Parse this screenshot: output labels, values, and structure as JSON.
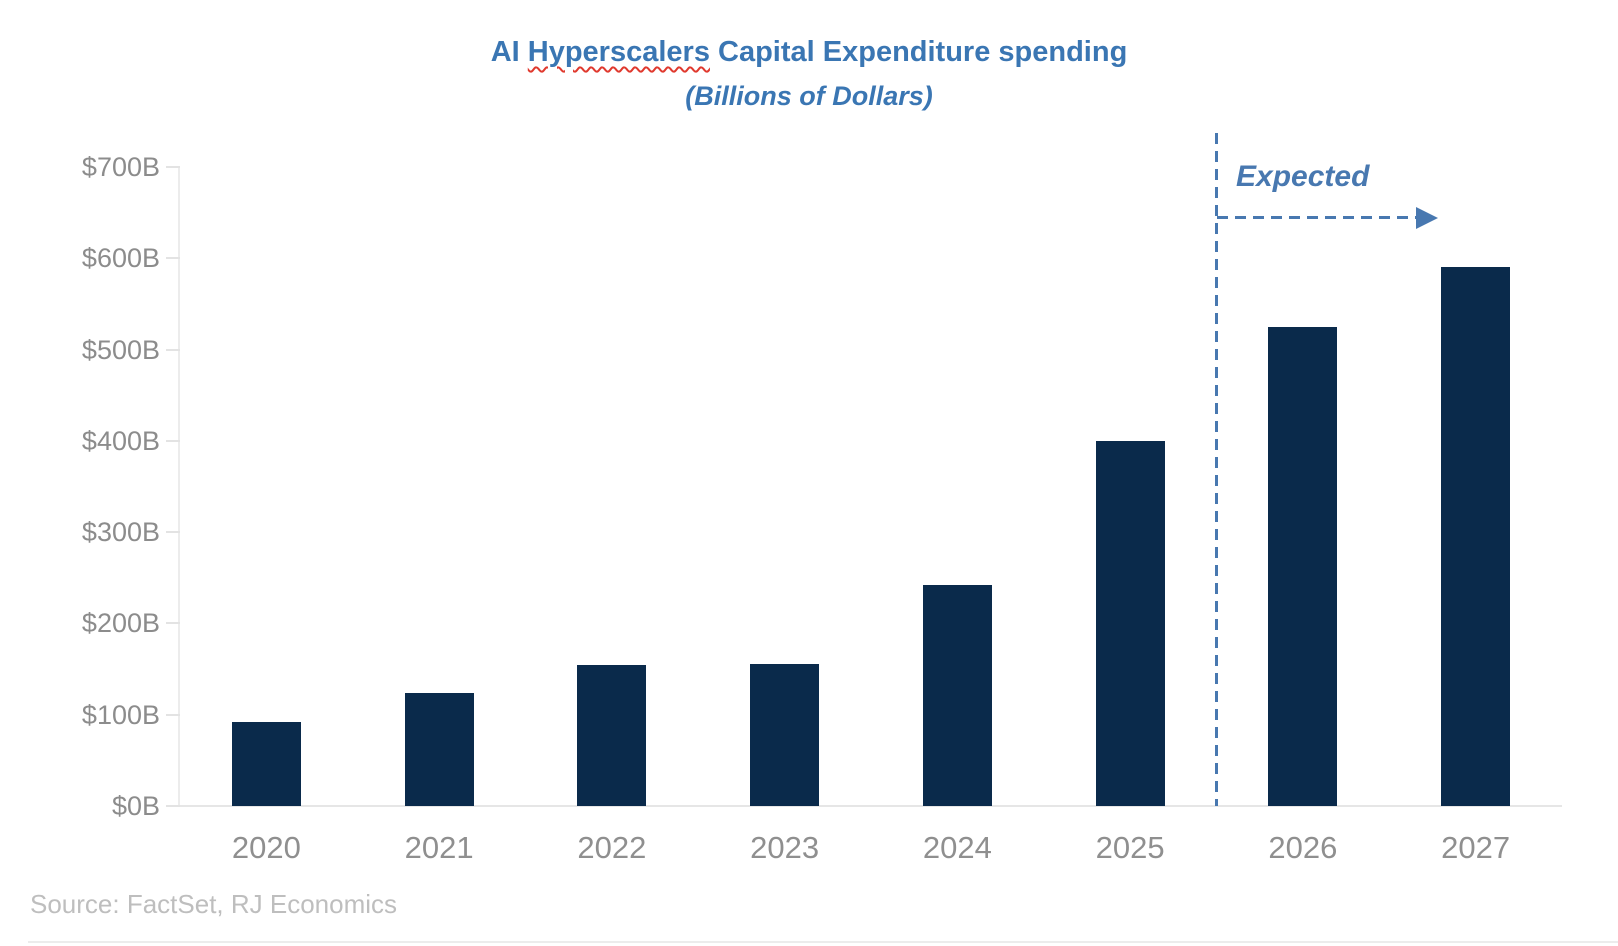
{
  "header": {
    "title_prefix": "AI ",
    "title_misspelled_word": "Hyperscalers",
    "title_suffix": " Capital Expenditure spending",
    "subtitle": "(Billions of Dollars)"
  },
  "chart_data": {
    "type": "bar",
    "title": "AI Hyperscalers Capital Expenditure spending",
    "subtitle": "(Billions of Dollars)",
    "categories": [
      "2020",
      "2021",
      "2022",
      "2023",
      "2024",
      "2025",
      "2026",
      "2027"
    ],
    "values": [
      92,
      124,
      155,
      156,
      242,
      400,
      525,
      590
    ],
    "unit": "billions of dollars",
    "ylim": [
      0,
      700
    ],
    "ytick_step": 100,
    "ytick_labels": [
      "$0B",
      "$100B",
      "$200B",
      "$300B",
      "$400B",
      "$500B",
      "$600B",
      "$700B"
    ],
    "grid": false,
    "legend": "none",
    "annotation": {
      "label": "Expected",
      "divider_after_category": "2025",
      "applies_to": [
        "2026",
        "2027"
      ]
    },
    "colors": {
      "bar": "#0A2A4B",
      "title_blue": "#3A76B3",
      "annotation_blue": "#4878B0",
      "axis_label_gray": "#8C8C8C",
      "category_label_gray": "#8F8F8F",
      "source_gray": "#BEBEBE",
      "spellcheck_red": "#E0392E",
      "axis_line_gray": "#E6E6E6"
    }
  },
  "footer": {
    "source": "Source: FactSet, RJ Economics"
  }
}
